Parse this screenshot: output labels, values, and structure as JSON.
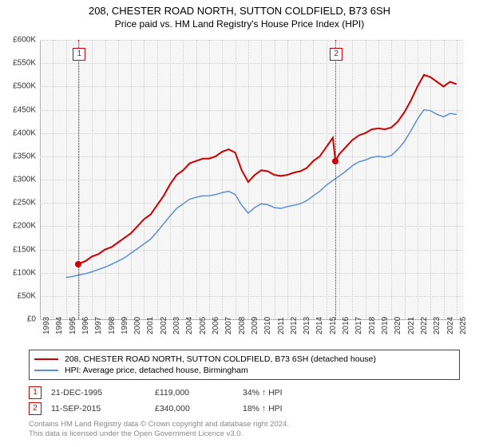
{
  "title": {
    "line1": "208, CHESTER ROAD NORTH, SUTTON COLDFIELD, B73 6SH",
    "line2": "Price paid vs. HM Land Registry's House Price Index (HPI)"
  },
  "chart": {
    "type": "line",
    "background_color": "#f6f6f6",
    "grid_color": "#cccccc",
    "xlim": [
      1993,
      2025.5
    ],
    "ylim": [
      0,
      600000
    ],
    "ytick_step": 50000,
    "yticks": [
      "£0",
      "£50K",
      "£100K",
      "£150K",
      "£200K",
      "£250K",
      "£300K",
      "£350K",
      "£400K",
      "£450K",
      "£500K",
      "£550K",
      "£600K"
    ],
    "xticks": [
      "1993",
      "1994",
      "1995",
      "1996",
      "1997",
      "1998",
      "1999",
      "2000",
      "2001",
      "2002",
      "2003",
      "2004",
      "2005",
      "2006",
      "2007",
      "2008",
      "2009",
      "2010",
      "2011",
      "2012",
      "2013",
      "2014",
      "2015",
      "2016",
      "2017",
      "2018",
      "2019",
      "2020",
      "2021",
      "2022",
      "2023",
      "2024",
      "2025"
    ],
    "series": [
      {
        "name": "property",
        "label": "208, CHESTER ROAD NORTH, SUTTON COLDFIELD, B73 6SH (detached house)",
        "color": "#cc0000",
        "width": 2,
        "data": [
          [
            1995.97,
            119000
          ],
          [
            1996.5,
            125000
          ],
          [
            1997,
            135000
          ],
          [
            1997.5,
            140000
          ],
          [
            1998,
            150000
          ],
          [
            1998.5,
            155000
          ],
          [
            1999,
            165000
          ],
          [
            1999.5,
            175000
          ],
          [
            2000,
            185000
          ],
          [
            2000.5,
            200000
          ],
          [
            2001,
            215000
          ],
          [
            2001.5,
            225000
          ],
          [
            2002,
            245000
          ],
          [
            2002.5,
            265000
          ],
          [
            2003,
            290000
          ],
          [
            2003.5,
            310000
          ],
          [
            2004,
            320000
          ],
          [
            2004.5,
            335000
          ],
          [
            2005,
            340000
          ],
          [
            2005.5,
            345000
          ],
          [
            2006,
            345000
          ],
          [
            2006.5,
            350000
          ],
          [
            2007,
            360000
          ],
          [
            2007.5,
            365000
          ],
          [
            2008,
            358000
          ],
          [
            2008.5,
            320000
          ],
          [
            2009,
            295000
          ],
          [
            2009.5,
            310000
          ],
          [
            2010,
            320000
          ],
          [
            2010.5,
            318000
          ],
          [
            2011,
            310000
          ],
          [
            2011.5,
            308000
          ],
          [
            2012,
            310000
          ],
          [
            2012.5,
            315000
          ],
          [
            2013,
            318000
          ],
          [
            2013.5,
            325000
          ],
          [
            2014,
            340000
          ],
          [
            2014.5,
            350000
          ],
          [
            2015,
            370000
          ],
          [
            2015.5,
            390000
          ],
          [
            2015.7,
            340000
          ],
          [
            2016,
            355000
          ],
          [
            2016.5,
            370000
          ],
          [
            2017,
            385000
          ],
          [
            2017.5,
            395000
          ],
          [
            2018,
            400000
          ],
          [
            2018.5,
            408000
          ],
          [
            2019,
            410000
          ],
          [
            2019.5,
            408000
          ],
          [
            2020,
            412000
          ],
          [
            2020.5,
            425000
          ],
          [
            2021,
            445000
          ],
          [
            2021.5,
            470000
          ],
          [
            2022,
            500000
          ],
          [
            2022.5,
            525000
          ],
          [
            2023,
            520000
          ],
          [
            2023.5,
            510000
          ],
          [
            2024,
            500000
          ],
          [
            2024.5,
            510000
          ],
          [
            2025,
            505000
          ]
        ]
      },
      {
        "name": "hpi",
        "label": "HPI: Average price, detached house, Birmingham",
        "color": "#5b8fd6",
        "width": 1.5,
        "data": [
          [
            1995,
            90000
          ],
          [
            1995.5,
            92000
          ],
          [
            1996,
            95000
          ],
          [
            1996.5,
            98000
          ],
          [
            1997,
            102000
          ],
          [
            1997.5,
            107000
          ],
          [
            1998,
            112000
          ],
          [
            1998.5,
            118000
          ],
          [
            1999,
            125000
          ],
          [
            1999.5,
            132000
          ],
          [
            2000,
            142000
          ],
          [
            2000.5,
            152000
          ],
          [
            2001,
            162000
          ],
          [
            2001.5,
            172000
          ],
          [
            2002,
            188000
          ],
          [
            2002.5,
            205000
          ],
          [
            2003,
            222000
          ],
          [
            2003.5,
            238000
          ],
          [
            2004,
            248000
          ],
          [
            2004.5,
            258000
          ],
          [
            2005,
            262000
          ],
          [
            2005.5,
            265000
          ],
          [
            2006,
            265000
          ],
          [
            2006.5,
            268000
          ],
          [
            2007,
            272000
          ],
          [
            2007.5,
            275000
          ],
          [
            2008,
            268000
          ],
          [
            2008.5,
            245000
          ],
          [
            2009,
            228000
          ],
          [
            2009.5,
            240000
          ],
          [
            2010,
            248000
          ],
          [
            2010.5,
            246000
          ],
          [
            2011,
            240000
          ],
          [
            2011.5,
            238000
          ],
          [
            2012,
            242000
          ],
          [
            2012.5,
            245000
          ],
          [
            2013,
            248000
          ],
          [
            2013.5,
            255000
          ],
          [
            2014,
            265000
          ],
          [
            2014.5,
            275000
          ],
          [
            2015,
            288000
          ],
          [
            2015.5,
            298000
          ],
          [
            2016,
            308000
          ],
          [
            2016.5,
            318000
          ],
          [
            2017,
            330000
          ],
          [
            2017.5,
            338000
          ],
          [
            2018,
            342000
          ],
          [
            2018.5,
            348000
          ],
          [
            2019,
            350000
          ],
          [
            2019.5,
            348000
          ],
          [
            2020,
            352000
          ],
          [
            2020.5,
            365000
          ],
          [
            2021,
            382000
          ],
          [
            2021.5,
            405000
          ],
          [
            2022,
            430000
          ],
          [
            2022.5,
            450000
          ],
          [
            2023,
            448000
          ],
          [
            2023.5,
            440000
          ],
          [
            2024,
            435000
          ],
          [
            2024.5,
            442000
          ],
          [
            2025,
            440000
          ]
        ]
      }
    ],
    "markers": [
      {
        "n": "1",
        "year": 1995.97,
        "price": 119000,
        "box_top": 10
      },
      {
        "n": "2",
        "year": 2015.7,
        "price": 340000,
        "box_top": 10
      }
    ]
  },
  "transactions": [
    {
      "n": "1",
      "date": "21-DEC-1995",
      "price": "£119,000",
      "hpi": "34% ↑ HPI"
    },
    {
      "n": "2",
      "date": "11-SEP-2015",
      "price": "£340,000",
      "hpi": "18% ↑ HPI"
    }
  ],
  "attribution": {
    "line1": "Contains HM Land Registry data © Crown copyright and database right 2024.",
    "line2": "This data is licensed under the Open Government Licence v3.0."
  }
}
